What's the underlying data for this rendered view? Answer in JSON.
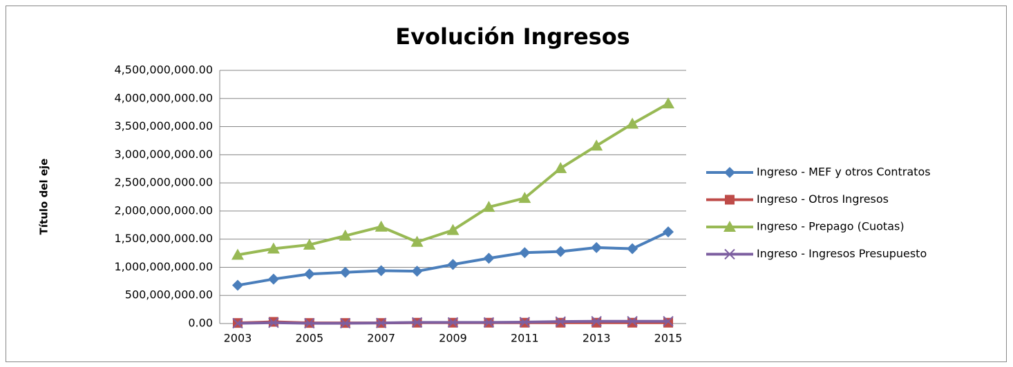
{
  "chart_data": {
    "type": "line",
    "title": "Evolución Ingresos",
    "y_label": "Título del eje",
    "x": [
      2003,
      2004,
      2005,
      2006,
      2007,
      2008,
      2009,
      2010,
      2011,
      2012,
      2013,
      2014,
      2015
    ],
    "xlim": [
      2002.5,
      2015.5
    ],
    "xticks": [
      2003,
      2005,
      2007,
      2009,
      2011,
      2013,
      2015
    ],
    "ylim": [
      0,
      4500000000
    ],
    "yticks": [
      {
        "value": 0,
        "label": "0.00"
      },
      {
        "value": 500000000,
        "label": "500,000,000.00"
      },
      {
        "value": 1000000000,
        "label": "1,000,000,000.00"
      },
      {
        "value": 1500000000,
        "label": "1,500,000,000.00"
      },
      {
        "value": 2000000000,
        "label": "2,000,000,000.00"
      },
      {
        "value": 2500000000,
        "label": "2,500,000,000.00"
      },
      {
        "value": 3000000000,
        "label": "3,000,000,000.00"
      },
      {
        "value": 3500000000,
        "label": "3,500,000,000.00"
      },
      {
        "value": 4000000000,
        "label": "4,000,000,000.00"
      },
      {
        "value": 4500000000,
        "label": "4,500,000,000.00"
      }
    ],
    "grid": true,
    "legend": "right",
    "series": [
      {
        "name": "Ingreso - MEF y otros Contratos",
        "color": "#4a7ebb",
        "marker": "diamond",
        "values": [
          680000000,
          790000000,
          880000000,
          910000000,
          940000000,
          930000000,
          1050000000,
          1160000000,
          1260000000,
          1280000000,
          1350000000,
          1330000000,
          1630000000
        ]
      },
      {
        "name": "Ingreso - Otros Ingresos",
        "color": "#be4b48",
        "marker": "square",
        "values": [
          10000000,
          30000000,
          10000000,
          10000000,
          10000000,
          15000000,
          15000000,
          15000000,
          15000000,
          15000000,
          15000000,
          15000000,
          15000000
        ]
      },
      {
        "name": "Ingreso - Prepago (Cuotas)",
        "color": "#98b954",
        "marker": "triangle",
        "values": [
          1220000000,
          1330000000,
          1400000000,
          1560000000,
          1720000000,
          1450000000,
          1660000000,
          2070000000,
          2230000000,
          2760000000,
          3160000000,
          3550000000,
          3910000000
        ]
      },
      {
        "name": "Ingreso - Ingresos Presupuesto",
        "color": "#7d5fa0",
        "marker": "x",
        "values": [
          5000000,
          15000000,
          5000000,
          5000000,
          10000000,
          20000000,
          20000000,
          20000000,
          25000000,
          35000000,
          40000000,
          40000000,
          40000000
        ]
      }
    ]
  }
}
